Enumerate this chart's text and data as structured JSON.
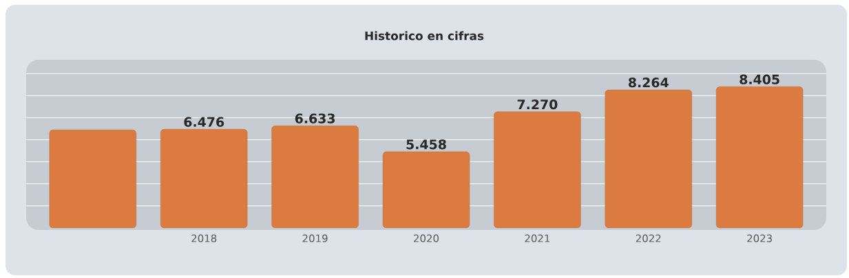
{
  "chart_data": {
    "type": "bar",
    "title": "Historico en cifras",
    "categories": [
      null,
      "2018",
      "2019",
      "2020",
      "2021",
      "2022",
      "2023"
    ],
    "values": [
      6450,
      6476,
      6633,
      5458,
      7270,
      8264,
      8405
    ],
    "value_labels": [
      null,
      "6.476",
      "6.633",
      "5.458",
      "7.270",
      "8.264",
      "8.405"
    ],
    "color": "#dc7b3f",
    "ylim": [
      2000,
      9600
    ],
    "yticks": [
      {
        "value": 3000,
        "label": null
      },
      {
        "value": 4000,
        "label": null
      },
      {
        "value": 5000,
        "label": null
      },
      {
        "value": 6000,
        "label": null
      },
      {
        "value": 7000,
        "label": null
      },
      {
        "value": 8000,
        "label": null
      },
      {
        "value": 9000,
        "label": null
      }
    ],
    "grid": "y",
    "tick_labels": "x"
  }
}
